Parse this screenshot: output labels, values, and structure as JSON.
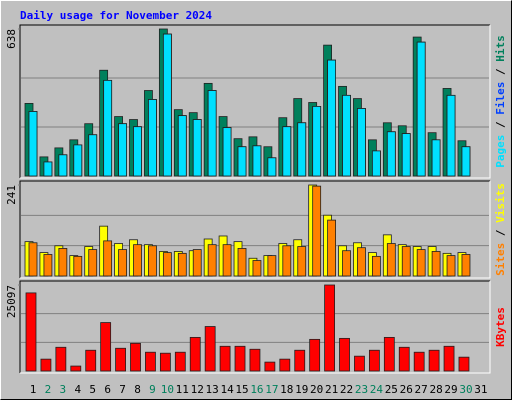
{
  "chart_data": [
    {
      "type": "bar",
      "title": "Daily usage for November 2024",
      "categories": [
        "1",
        "2",
        "3",
        "4",
        "5",
        "6",
        "7",
        "8",
        "9",
        "10",
        "11",
        "12",
        "13",
        "14",
        "15",
        "16",
        "17",
        "18",
        "19",
        "20",
        "21",
        "22",
        "23",
        "24",
        "25",
        "26",
        "27",
        "28",
        "29",
        "30",
        "31"
      ],
      "series": [
        {
          "name": "Hits",
          "color": "#00805c",
          "values": [
            315,
            83,
            122,
            157,
            227,
            459,
            258,
            245,
            371,
            638,
            288,
            275,
            402,
            258,
            162,
            170,
            127,
            253,
            336,
            319,
            568,
            389,
            336,
            157,
            231,
            218,
            603,
            188,
            380,
            153,
            null
          ]
        },
        {
          "name": "Files",
          "color": "#0040ff",
          "values": [
            280,
            61,
            92,
            135,
            179,
            415,
            227,
            214,
            332,
            616,
            262,
            245,
            371,
            210,
            127,
            131,
            79,
            214,
            231,
            302,
            503,
            350,
            293,
            109,
            192,
            184,
            581,
            157,
            350,
            127,
            null
          ]
        },
        {
          "name": "Pages",
          "color": "#00e0ff",
          "values": [
            280,
            61,
            92,
            135,
            179,
            415,
            227,
            214,
            332,
            616,
            262,
            245,
            371,
            210,
            127,
            131,
            79,
            214,
            231,
            302,
            503,
            350,
            293,
            109,
            192,
            184,
            581,
            157,
            350,
            127,
            null
          ]
        }
      ],
      "ylim": [
        0,
        638
      ],
      "yticks": [
        638
      ],
      "legend_separator": " / ",
      "grid": true
    },
    {
      "type": "bar",
      "categories": [
        "1",
        "2",
        "3",
        "4",
        "5",
        "6",
        "7",
        "8",
        "9",
        "10",
        "11",
        "12",
        "13",
        "14",
        "15",
        "16",
        "17",
        "18",
        "19",
        "20",
        "21",
        "22",
        "23",
        "24",
        "25",
        "26",
        "27",
        "28",
        "29",
        "30",
        "31"
      ],
      "series": [
        {
          "name": "Visits",
          "color": "#ffff00",
          "values": [
            91,
            62,
            80,
            54,
            78,
            132,
            86,
            96,
            83,
            65,
            65,
            67,
            98,
            106,
            91,
            47,
            54,
            86,
            96,
            241,
            161,
            80,
            88,
            62,
            109,
            83,
            78,
            78,
            60,
            62,
            null
          ]
        },
        {
          "name": "Sites",
          "color": "#ff8000",
          "values": [
            88,
            57,
            73,
            52,
            70,
            93,
            70,
            83,
            80,
            62,
            60,
            70,
            83,
            83,
            73,
            41,
            54,
            80,
            78,
            238,
            148,
            67,
            75,
            52,
            86,
            78,
            70,
            65,
            54,
            57,
            null
          ]
        }
      ],
      "ylim": [
        0,
        241
      ],
      "yticks": [
        241
      ],
      "legend_separator": " / ",
      "grid": true
    },
    {
      "type": "bar",
      "categories": [
        "1",
        "2",
        "3",
        "4",
        "5",
        "6",
        "7",
        "8",
        "9",
        "10",
        "11",
        "12",
        "13",
        "14",
        "15",
        "16",
        "17",
        "18",
        "19",
        "20",
        "21",
        "22",
        "23",
        "24",
        "25",
        "26",
        "27",
        "28",
        "29",
        "30",
        "31"
      ],
      "category_colors": [
        "#000000",
        "#00805c",
        "#00805c",
        "#000000",
        "#000000",
        "#000000",
        "#000000",
        "#000000",
        "#00805c",
        "#00805c",
        "#000000",
        "#000000",
        "#000000",
        "#000000",
        "#000000",
        "#00805c",
        "#00805c",
        "#000000",
        "#000000",
        "#000000",
        "#000000",
        "#000000",
        "#00805c",
        "#00805c",
        "#000000",
        "#000000",
        "#000000",
        "#000000",
        "#000000",
        "#00805c",
        "#000000"
      ],
      "series": [
        {
          "name": "KBytes",
          "color": "#ff0000",
          "values": [
            22790,
            3462,
            6923,
            1442,
            6058,
            14135,
            6635,
            8077,
            5481,
            5192,
            5481,
            9808,
            12981,
            7212,
            7212,
            6346,
            2596,
            3462,
            6058,
            9231,
            25097,
            9519,
            4327,
            6058,
            9808,
            6923,
            5481,
            6058,
            7212,
            4039,
            null
          ]
        }
      ],
      "ylim": [
        0,
        25097
      ],
      "yticks": [
        25097
      ],
      "grid": true
    }
  ]
}
